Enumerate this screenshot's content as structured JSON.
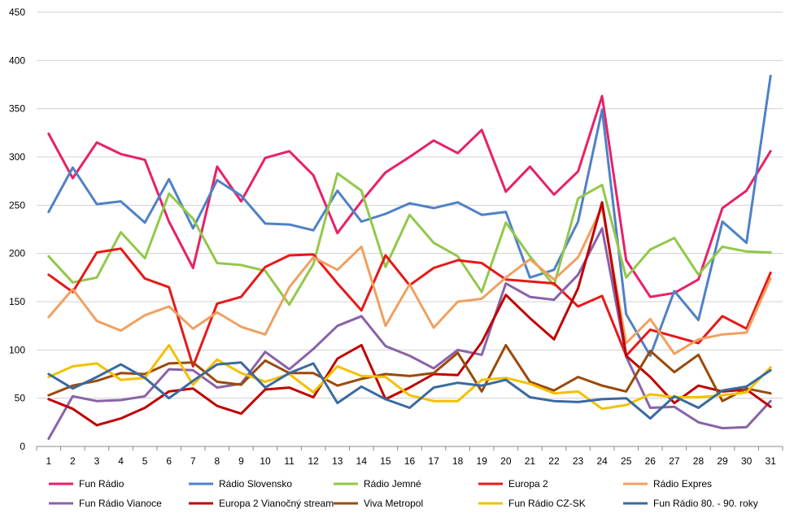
{
  "chart_data": {
    "type": "line",
    "title": "",
    "xlabel": "",
    "ylabel": "",
    "ylim": [
      0,
      450
    ],
    "yticks": [
      0,
      50,
      100,
      150,
      200,
      250,
      300,
      350,
      400,
      450
    ],
    "grid": "horizontal",
    "legend_position": "bottom",
    "categories": [
      "1",
      "2",
      "3",
      "4",
      "5",
      "6",
      "7",
      "8",
      "9",
      "10",
      "11",
      "12",
      "13",
      "14",
      "15",
      "16",
      "17",
      "18",
      "19",
      "20",
      "21",
      "22",
      "23",
      "24",
      "25",
      "26",
      "27",
      "28",
      "29",
      "30",
      "31"
    ],
    "series": [
      {
        "name": "Fun Rádio",
        "color": "#e8206a",
        "values": [
          324,
          278,
          315,
          303,
          297,
          233,
          185,
          290,
          254,
          299,
          306,
          281,
          221,
          254,
          284,
          300,
          317,
          304,
          328,
          264,
          290,
          261,
          285,
          363,
          193,
          155,
          159,
          173,
          247,
          265,
          306
        ]
      },
      {
        "name": "Rádio Slovensko",
        "color": "#4f81c6",
        "values": [
          243,
          289,
          251,
          254,
          232,
          277,
          226,
          276,
          260,
          231,
          230,
          224,
          265,
          233,
          241,
          252,
          247,
          253,
          240,
          243,
          175,
          183,
          233,
          349,
          137,
          94,
          161,
          131,
          233,
          211,
          384
        ]
      },
      {
        "name": "Rádio Jemné",
        "color": "#92c84a",
        "values": [
          197,
          170,
          175,
          222,
          195,
          262,
          236,
          190,
          188,
          182,
          147,
          189,
          283,
          265,
          186,
          240,
          211,
          197,
          160,
          232,
          197,
          167,
          257,
          271,
          175,
          204,
          216,
          178,
          207,
          202,
          201
        ]
      },
      {
        "name": "Europa 2",
        "color": "#e81818",
        "values": [
          178,
          160,
          201,
          205,
          174,
          165,
          83,
          148,
          155,
          186,
          198,
          199,
          169,
          141,
          198,
          167,
          185,
          193,
          190,
          173,
          171,
          169,
          145,
          156,
          94,
          121,
          114,
          107,
          135,
          122,
          180
        ]
      },
      {
        "name": "Rádio Expres",
        "color": "#f0a060",
        "values": [
          134,
          163,
          130,
          120,
          136,
          145,
          122,
          139,
          124,
          116,
          165,
          196,
          183,
          207,
          125,
          168,
          123,
          150,
          153,
          175,
          194,
          173,
          196,
          248,
          107,
          132,
          96,
          111,
          116,
          118,
          174
        ]
      },
      {
        "name": "Fun Rádio Vianoce",
        "color": "#8a62a8",
        "values": [
          8,
          52,
          47,
          48,
          52,
          80,
          79,
          61,
          65,
          98,
          80,
          101,
          125,
          135,
          104,
          94,
          81,
          100,
          95,
          169,
          155,
          152,
          178,
          226,
          93,
          40,
          41,
          25,
          19,
          20,
          47
        ]
      },
      {
        "name": "Europa 2 Vianočný stream",
        "color": "#c00000",
        "values": [
          49,
          39,
          22,
          29,
          40,
          57,
          60,
          42,
          34,
          59,
          61,
          51,
          91,
          105,
          49,
          61,
          75,
          74,
          108,
          157,
          133,
          111,
          164,
          253,
          94,
          72,
          45,
          63,
          57,
          59,
          41
        ]
      },
      {
        "name": "Viva Metropol",
        "color": "#9a4a0a",
        "values": [
          53,
          63,
          68,
          76,
          75,
          86,
          87,
          67,
          64,
          89,
          76,
          76,
          63,
          70,
          75,
          73,
          76,
          97,
          57,
          105,
          67,
          58,
          72,
          63,
          57,
          99,
          77,
          95,
          47,
          60,
          55
        ]
      },
      {
        "name": "Fun Rádio CZ-SK",
        "color": "#f4c000",
        "values": [
          72,
          83,
          86,
          69,
          71,
          105,
          64,
          90,
          76,
          67,
          75,
          56,
          83,
          73,
          72,
          53,
          47,
          47,
          69,
          71,
          65,
          55,
          57,
          39,
          43,
          54,
          51,
          51,
          53,
          56,
          82
        ]
      },
      {
        "name": "Fun Rádio 80. - 90. roky",
        "color": "#3a6aa0",
        "values": [
          75,
          60,
          72,
          85,
          71,
          50,
          68,
          85,
          87,
          61,
          76,
          86,
          45,
          62,
          49,
          40,
          61,
          66,
          63,
          69,
          51,
          47,
          46,
          49,
          50,
          29,
          52,
          40,
          58,
          62,
          79
        ]
      }
    ]
  }
}
